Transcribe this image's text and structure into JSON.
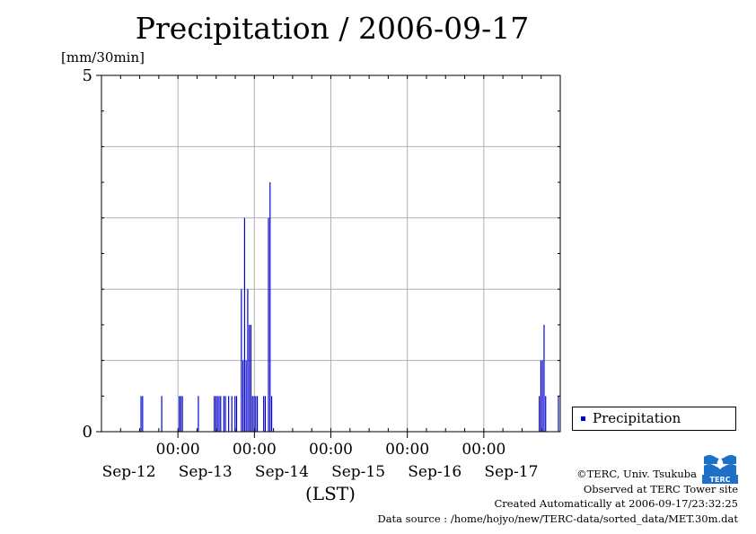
{
  "chart_data": {
    "type": "bar",
    "title": "Precipitation / 2006-09-17",
    "ylabel": "[mm/30min]",
    "xlabel": "(LST)",
    "ylim": [
      0,
      5
    ],
    "y_ticks": [
      "0",
      "5"
    ],
    "x_time_labels": [
      "00:00",
      "00:00",
      "00:00",
      "00:00",
      "00:00"
    ],
    "x_date_labels": [
      "Sep-12",
      "Sep-13",
      "Sep-14",
      "Sep-15",
      "Sep-16",
      "Sep-17"
    ],
    "x_range_hours": [
      0,
      144
    ],
    "grid": true,
    "legend_position": "right",
    "series": [
      {
        "name": "Precipitation",
        "color": "#0000cc",
        "points": [
          {
            "t": 12.5,
            "v": 0.5
          },
          {
            "t": 13.0,
            "v": 0.5
          },
          {
            "t": 19.0,
            "v": 0.5
          },
          {
            "t": 24.5,
            "v": 0.5
          },
          {
            "t": 25.0,
            "v": 0.5
          },
          {
            "t": 25.5,
            "v": 0.5
          },
          {
            "t": 30.5,
            "v": 0.5
          },
          {
            "t": 35.5,
            "v": 0.5
          },
          {
            "t": 36.0,
            "v": 0.5
          },
          {
            "t": 36.5,
            "v": 0.5
          },
          {
            "t": 37.0,
            "v": 0.5
          },
          {
            "t": 37.5,
            "v": 0.5
          },
          {
            "t": 38.5,
            "v": 0.5
          },
          {
            "t": 39.0,
            "v": 0.5
          },
          {
            "t": 40.0,
            "v": 0.5
          },
          {
            "t": 41.0,
            "v": 0.5
          },
          {
            "t": 42.0,
            "v": 0.5
          },
          {
            "t": 42.5,
            "v": 0.5
          },
          {
            "t": 44.0,
            "v": 2.0
          },
          {
            "t": 44.5,
            "v": 1.0
          },
          {
            "t": 45.0,
            "v": 3.0
          },
          {
            "t": 45.5,
            "v": 1.0
          },
          {
            "t": 46.0,
            "v": 2.0
          },
          {
            "t": 46.5,
            "v": 1.5
          },
          {
            "t": 47.0,
            "v": 1.5
          },
          {
            "t": 47.5,
            "v": 0.5
          },
          {
            "t": 48.0,
            "v": 0.5
          },
          {
            "t": 48.5,
            "v": 0.5
          },
          {
            "t": 49.0,
            "v": 0.5
          },
          {
            "t": 51.0,
            "v": 0.5
          },
          {
            "t": 51.5,
            "v": 0.5
          },
          {
            "t": 52.5,
            "v": 3.0
          },
          {
            "t": 53.0,
            "v": 3.5
          },
          {
            "t": 53.5,
            "v": 0.5
          },
          {
            "t": 137.5,
            "v": 0.5
          },
          {
            "t": 138.0,
            "v": 1.0
          },
          {
            "t": 138.5,
            "v": 1.0
          },
          {
            "t": 139.0,
            "v": 1.5
          },
          {
            "t": 139.5,
            "v": 0.5
          },
          {
            "t": 143.5,
            "v": 0.5
          }
        ]
      }
    ]
  },
  "credits": {
    "line1": "©TERC, Univ. Tsukuba",
    "line2": "Observed at TERC Tower site",
    "line3": "Created Automatically at 2006-09-17/23:32:25",
    "line4": "Data source : /home/hojyo/new/TERC-data/sorted_data/MET.30m.dat"
  },
  "logo": {
    "icon": "terc-logo-icon",
    "text": "TERC",
    "color": "#1e6fc8"
  }
}
